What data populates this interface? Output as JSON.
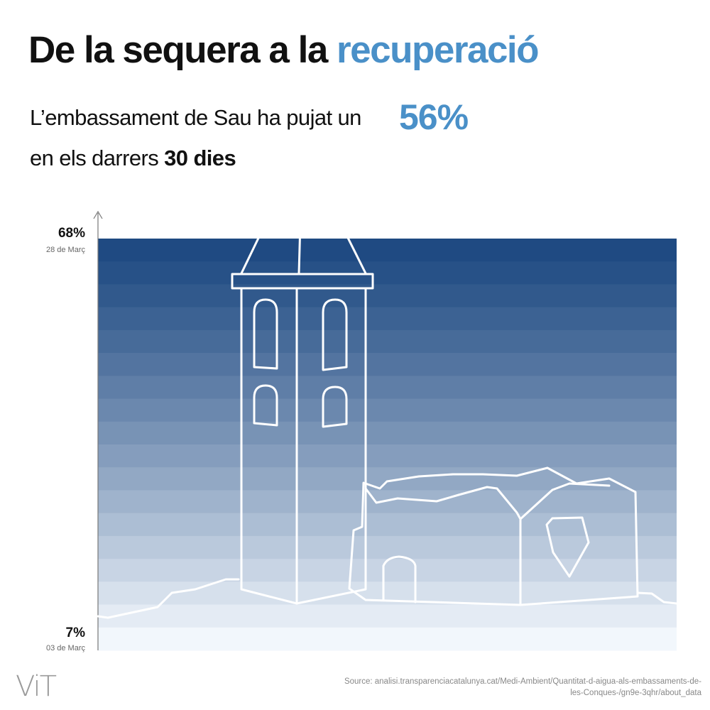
{
  "title": {
    "main": "De la sequera a la",
    "accent": "recuperació"
  },
  "subtitle": {
    "line1": "L’embassament de Sau ha pujat un",
    "highlight": "56%",
    "line2_prefix": "en els darrers",
    "line2_bold": "30 dies"
  },
  "colors": {
    "accent": "#4a90c8",
    "water_top": "#1f4a82",
    "water_bottom": "#f2f7fc"
  },
  "chart_data": {
    "type": "area",
    "series": [
      {
        "x": [
          "03 de Març",
          "28 de Març"
        ],
        "values": [
          7,
          68
        ]
      }
    ],
    "y_ticks": [
      {
        "value": 68,
        "label": "68%",
        "date": "28 de Març"
      },
      {
        "value": 7,
        "label": "7%",
        "date": "03 de Març"
      }
    ],
    "ylim": [
      5,
      68
    ],
    "band_count": 18,
    "illustration": "church-bell-tower-outline"
  },
  "footer": {
    "logo": "ViT",
    "source": "Source: analisi.transparenciacatalunya.cat/Medi-Ambient/Quantitat-d-aigua-als-embassaments-de-les-Conques-/gn9e-3qhr/about_data"
  }
}
